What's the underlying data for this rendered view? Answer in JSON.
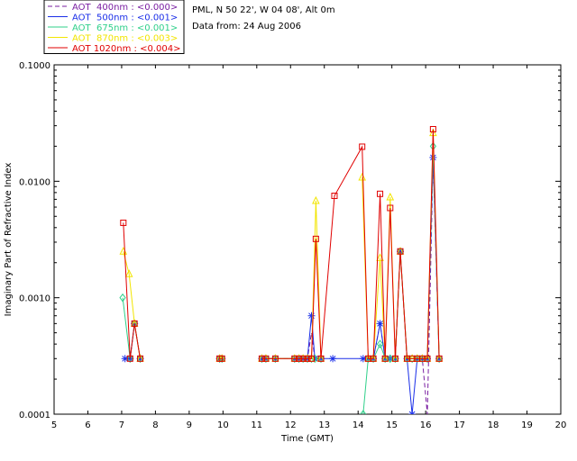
{
  "header": {
    "station_line": "PML, N 50 22', W 04 08', Alt 0m",
    "date_line": "Data from: 24 Aug 2006"
  },
  "chart_data": {
    "type": "line",
    "title": "",
    "xlabel": "Time (GMT)",
    "ylabel": "Imaginary Part of Refractive Index",
    "x_ticks": [
      "5",
      "6",
      "7",
      "8",
      "9",
      "10",
      "11",
      "12",
      "13",
      "14",
      "15",
      "16",
      "17",
      "18",
      "19",
      "20"
    ],
    "y_ticks": [
      "0.0001",
      "0.0010",
      "0.0100",
      "0.1000"
    ],
    "xlim": [
      5,
      20
    ],
    "ylim": [
      0.0001,
      0.1
    ],
    "y_scale": "log",
    "grid": false,
    "legend_position": "top-left outside",
    "series": [
      {
        "name": "AOT  400nm : <0.000>",
        "color": "#7a1fa2",
        "marker": "none",
        "dash": "5,3",
        "points": [
          [
            7.1,
            0.0003
          ],
          [
            7.25,
            0.0003
          ],
          [
            7.38,
            0.0006
          ],
          [
            7.55,
            0.0003
          ],
          [
            9.9,
            0.0003
          ],
          [
            9.97,
            0.0003
          ],
          [
            11.15,
            0.0003
          ],
          [
            11.27,
            0.0003
          ],
          [
            11.55,
            0.0003
          ],
          [
            12.12,
            0.0003
          ],
          [
            12.25,
            0.0003
          ],
          [
            12.37,
            0.0003
          ],
          [
            12.5,
            0.0003
          ],
          [
            12.62,
            0.0005
          ],
          [
            12.72,
            0.0003
          ],
          [
            12.9,
            0.0003
          ],
          [
            14.15,
            0.0003
          ],
          [
            14.3,
            0.0003
          ],
          [
            14.45,
            0.0003
          ],
          [
            14.65,
            0.0006
          ],
          [
            14.8,
            0.0003
          ],
          [
            14.95,
            0.0003
          ],
          [
            15.1,
            0.0003
          ],
          [
            15.25,
            0.0025
          ],
          [
            15.45,
            0.0003
          ],
          [
            15.6,
            0.0003
          ],
          [
            15.75,
            0.0003
          ],
          [
            15.9,
            0.0003
          ],
          [
            16.05,
            0.0001
          ],
          [
            16.22,
            0.016
          ],
          [
            16.4,
            0.0003
          ]
        ]
      },
      {
        "name": "AOT  500nm : <0.001>",
        "color": "#1a2ee8",
        "marker": "star",
        "dash": "",
        "points": [
          [
            7.1,
            0.0003
          ],
          [
            7.25,
            0.0003
          ],
          [
            7.38,
            0.0006
          ],
          [
            7.55,
            0.0003
          ],
          [
            9.9,
            0.0003
          ],
          [
            9.97,
            0.0003
          ],
          [
            11.15,
            0.0003
          ],
          [
            11.27,
            0.0003
          ],
          [
            11.55,
            0.0003
          ],
          [
            12.12,
            0.0003
          ],
          [
            12.25,
            0.0003
          ],
          [
            12.37,
            0.0003
          ],
          [
            12.5,
            0.0003
          ],
          [
            12.62,
            0.0007
          ],
          [
            12.72,
            0.0003
          ],
          [
            12.9,
            0.0003
          ],
          [
            13.25,
            0.0003
          ],
          [
            14.15,
            0.0003
          ],
          [
            14.3,
            0.0003
          ],
          [
            14.45,
            0.0003
          ],
          [
            14.65,
            0.0006
          ],
          [
            14.8,
            0.0003
          ],
          [
            14.95,
            0.0003
          ],
          [
            15.1,
            0.0003
          ],
          [
            15.25,
            0.0025
          ],
          [
            15.45,
            0.0003
          ],
          [
            15.6,
            0.0001
          ],
          [
            15.75,
            0.0003
          ],
          [
            15.9,
            0.0003
          ],
          [
            16.05,
            0.0003
          ],
          [
            16.22,
            0.016
          ],
          [
            16.4,
            0.0003
          ]
        ]
      },
      {
        "name": "AOT  675nm : <0.001>",
        "color": "#2fd08a",
        "marker": "diamond",
        "dash": "",
        "points": [
          [
            7.03,
            0.001
          ],
          [
            7.25,
            0.0003
          ],
          [
            7.38,
            0.0006
          ],
          [
            7.55,
            0.0003
          ],
          [
            9.9,
            0.0003
          ],
          [
            9.97,
            0.0003
          ],
          [
            11.15,
            0.0003
          ],
          [
            11.27,
            0.0003
          ],
          [
            11.55,
            0.0003
          ],
          [
            12.12,
            0.0003
          ],
          [
            12.25,
            0.0003
          ],
          [
            12.37,
            0.0003
          ],
          [
            12.5,
            0.0003
          ],
          [
            12.62,
            0.0003
          ],
          [
            12.72,
            0.0003
          ],
          [
            12.9,
            0.0003
          ],
          [
            14.15,
            0.0001
          ],
          [
            14.3,
            0.0003
          ],
          [
            14.45,
            0.0003
          ],
          [
            14.65,
            0.0004
          ],
          [
            14.8,
            0.0003
          ],
          [
            14.95,
            0.0003
          ],
          [
            15.1,
            0.0003
          ],
          [
            15.25,
            0.0025
          ],
          [
            15.45,
            0.0003
          ],
          [
            15.6,
            0.0003
          ],
          [
            15.75,
            0.0003
          ],
          [
            15.9,
            0.0003
          ],
          [
            16.05,
            0.0003
          ],
          [
            16.22,
            0.02
          ],
          [
            16.4,
            0.0003
          ]
        ]
      },
      {
        "name": "AOT  870nm : <0.003>",
        "color": "#f2e500",
        "marker": "triangle",
        "dash": "",
        "points": [
          [
            7.05,
            0.0025
          ],
          [
            7.22,
            0.0016
          ],
          [
            7.38,
            0.0006
          ],
          [
            7.55,
            0.0003
          ],
          [
            9.9,
            0.0003
          ],
          [
            9.97,
            0.0003
          ],
          [
            11.15,
            0.0003
          ],
          [
            11.27,
            0.0003
          ],
          [
            11.55,
            0.0003
          ],
          [
            12.12,
            0.0003
          ],
          [
            12.25,
            0.0003
          ],
          [
            12.37,
            0.0003
          ],
          [
            12.5,
            0.0003
          ],
          [
            12.62,
            0.0003
          ],
          [
            12.75,
            0.0068
          ],
          [
            12.9,
            0.0003
          ],
          [
            14.12,
            0.0108
          ],
          [
            14.3,
            0.0003
          ],
          [
            14.45,
            0.0003
          ],
          [
            14.65,
            0.0022
          ],
          [
            14.8,
            0.0003
          ],
          [
            14.95,
            0.0073
          ],
          [
            15.1,
            0.0003
          ],
          [
            15.25,
            0.0025
          ],
          [
            15.45,
            0.0003
          ],
          [
            15.6,
            0.0003
          ],
          [
            15.75,
            0.0003
          ],
          [
            15.9,
            0.0003
          ],
          [
            16.05,
            0.0003
          ],
          [
            16.22,
            0.026
          ],
          [
            16.4,
            0.0003
          ]
        ]
      },
      {
        "name": "AOT 1020nm : <0.004>",
        "color": "#e00000",
        "marker": "square",
        "dash": "",
        "points": [
          [
            7.05,
            0.0044
          ],
          [
            7.25,
            0.0003
          ],
          [
            7.38,
            0.0006
          ],
          [
            7.55,
            0.0003
          ],
          [
            9.9,
            0.0003
          ],
          [
            9.97,
            0.0003
          ],
          [
            11.15,
            0.0003
          ],
          [
            11.27,
            0.0003
          ],
          [
            11.55,
            0.0003
          ],
          [
            12.12,
            0.0003
          ],
          [
            12.25,
            0.0003
          ],
          [
            12.37,
            0.0003
          ],
          [
            12.5,
            0.0003
          ],
          [
            12.62,
            0.0003
          ],
          [
            12.75,
            0.0032
          ],
          [
            12.9,
            0.0003
          ],
          [
            13.3,
            0.0075
          ],
          [
            14.12,
            0.0198
          ],
          [
            14.3,
            0.0003
          ],
          [
            14.45,
            0.0003
          ],
          [
            14.65,
            0.0078
          ],
          [
            14.8,
            0.0003
          ],
          [
            14.95,
            0.0059
          ],
          [
            15.1,
            0.0003
          ],
          [
            15.25,
            0.0025
          ],
          [
            15.45,
            0.0003
          ],
          [
            15.6,
            0.0003
          ],
          [
            15.75,
            0.0003
          ],
          [
            15.9,
            0.0003
          ],
          [
            16.05,
            0.0003
          ],
          [
            16.22,
            0.028
          ],
          [
            16.4,
            0.0003
          ]
        ]
      }
    ]
  }
}
